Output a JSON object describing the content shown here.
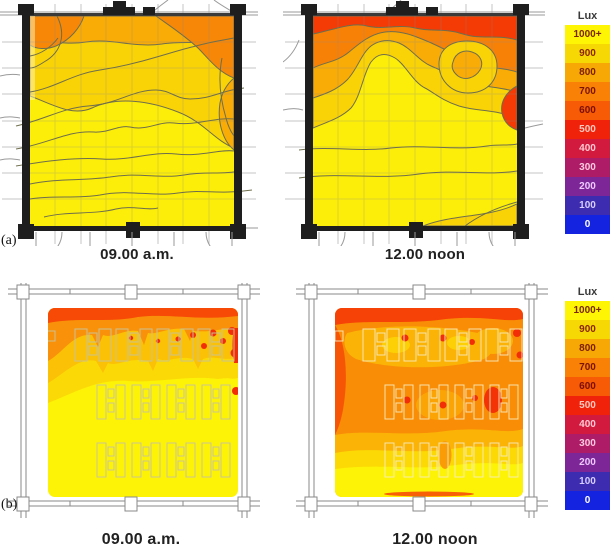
{
  "figure": {
    "row_a_label": "(a)",
    "row_b_label": "(b)",
    "captions": {
      "a1": "09.00 a.m.",
      "a2": "12.00 noon",
      "b1": "09.00 a.m.",
      "b2": "12.00 noon"
    }
  },
  "legend": {
    "title": "Lux",
    "entries": [
      {
        "label": "1000+",
        "color": "#fdf503",
        "text_color": "#7a2400"
      },
      {
        "label": "900",
        "color": "#f6d804",
        "text_color": "#8b2400"
      },
      {
        "label": "800",
        "color": "#f8a805",
        "text_color": "#7b1c00"
      },
      {
        "label": "700",
        "color": "#f88106",
        "text_color": "#7b1200"
      },
      {
        "label": "600",
        "color": "#f75b06",
        "text_color": "#7b0e00"
      },
      {
        "label": "500",
        "color": "#f0220a",
        "text_color": "#ffc9c0"
      },
      {
        "label": "400",
        "color": "#d21a3f",
        "text_color": "#ffc9d2"
      },
      {
        "label": "300",
        "color": "#ae1c68",
        "text_color": "#ffc9de"
      },
      {
        "label": "200",
        "color": "#7c2697",
        "text_color": "#eec9ff"
      },
      {
        "label": "100",
        "color": "#3e2cb0",
        "text_color": "#d6cfff"
      },
      {
        "label": "0",
        "color": "#1423df",
        "text_color": "#ffffff"
      }
    ]
  },
  "chart_data": [
    {
      "type": "heatmap",
      "panel": "row-a 09.00 a.m.",
      "representation": "line-contour illuminance map over floor plan",
      "unit": "Lux",
      "scale_ticks": [
        "1000+",
        "900",
        "800",
        "700",
        "600",
        "500",
        "400",
        "300",
        "200",
        "100",
        "0"
      ],
      "approx_regions_top_to_bottom": [
        {
          "region": "top-left corner",
          "lux": 700
        },
        {
          "region": "top-right corner",
          "lux": 700
        },
        {
          "region": "top strip",
          "lux": 800
        },
        {
          "region": "upper band and right edge tongue",
          "lux": 900
        },
        {
          "region": "central and lower floor",
          "lux": "1000+"
        }
      ]
    },
    {
      "type": "heatmap",
      "panel": "row-a 12.00 noon",
      "representation": "line-contour illuminance map over floor plan",
      "unit": "Lux",
      "scale_ticks": [
        "1000+",
        "900",
        "800",
        "700",
        "600",
        "500",
        "400",
        "300",
        "200",
        "100",
        "0"
      ],
      "approx_regions_top_to_bottom": [
        {
          "region": "top band",
          "lux": 500
        },
        {
          "region": "upper band",
          "lux": 700
        },
        {
          "region": "upper-right rounded patch",
          "lux": 900
        },
        {
          "region": "mid band",
          "lux": 800
        },
        {
          "region": "right edge spot",
          "lux": 500
        },
        {
          "region": "lower half",
          "lux": "900-1000+"
        }
      ]
    },
    {
      "type": "heatmap",
      "panel": "row-b 09.00 a.m.",
      "representation": "false-color illuminance render over furnished floor plan",
      "unit": "Lux",
      "scale_ticks": [
        "1000+",
        "900",
        "800",
        "700",
        "600",
        "500",
        "400",
        "300",
        "200",
        "100",
        "0"
      ],
      "approx_regions_top_to_bottom": [
        {
          "region": "top edge",
          "lux": 600
        },
        {
          "region": "upper band",
          "lux": 700
        },
        {
          "region": "band across first desk row",
          "lux": 800
        },
        {
          "region": "transition band",
          "lux": 900
        },
        {
          "region": "main floor",
          "lux": "1000+"
        },
        {
          "region": "north-east spots",
          "lux": 500
        }
      ]
    },
    {
      "type": "heatmap",
      "panel": "row-b 12.00 noon",
      "representation": "false-color illuminance render over furnished floor plan",
      "unit": "Lux",
      "scale_ticks": [
        "1000+",
        "900",
        "800",
        "700",
        "600",
        "500",
        "400",
        "300",
        "200",
        "100",
        "0"
      ],
      "approx_regions_top_to_bottom": [
        {
          "region": "top edge and west edge",
          "lux": 500
        },
        {
          "region": "first desk row zone",
          "lux": 800
        },
        {
          "region": "main field",
          "lux": 700
        },
        {
          "region": "lower transition band",
          "lux": 800
        },
        {
          "region": "south band",
          "lux": 900
        },
        {
          "region": "south edge strip",
          "lux": "1000+"
        }
      ]
    }
  ]
}
